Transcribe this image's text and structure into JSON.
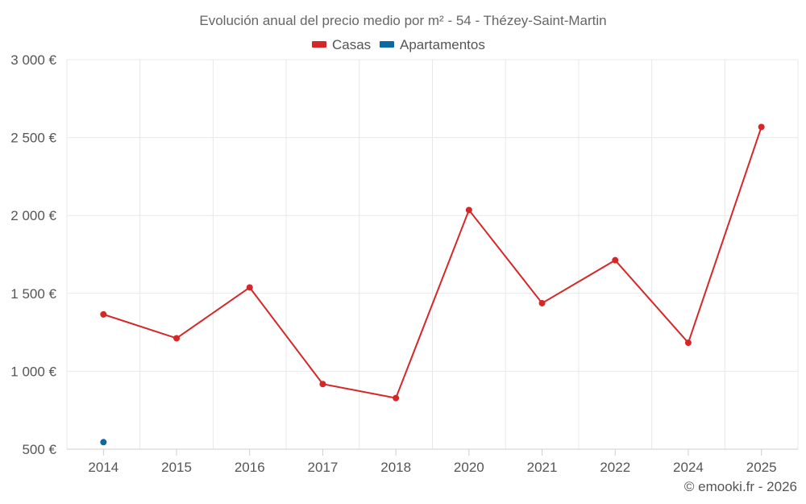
{
  "chart_data": {
    "type": "line",
    "title": "Evolución anual del precio medio por m² - 54 - Thézey-Saint-Martin",
    "categories": [
      "2014",
      "2015",
      "2016",
      "2017",
      "2018",
      "2020",
      "2021",
      "2022",
      "2024",
      "2025"
    ],
    "series": [
      {
        "name": "Casas",
        "color": "#d62728",
        "values": [
          1365,
          1212,
          1538,
          918,
          828,
          2035,
          1437,
          1713,
          1183,
          2568
        ]
      },
      {
        "name": "Apartamentos",
        "color": "#0b6aa2",
        "values": [
          545,
          null,
          null,
          null,
          null,
          null,
          null,
          null,
          null,
          null
        ]
      }
    ],
    "ylim": [
      500,
      3000
    ],
    "yticks": [
      500,
      1000,
      1500,
      2000,
      2500,
      3000
    ],
    "ytick_labels": [
      "500 €",
      "1 000 €",
      "1 500 €",
      "2 000 €",
      "2 500 €",
      "3 000 €"
    ],
    "xlabel": "",
    "ylabel": "",
    "grid": true,
    "legend_position": "top-center",
    "credit": "© emooki.fr - 2026"
  }
}
